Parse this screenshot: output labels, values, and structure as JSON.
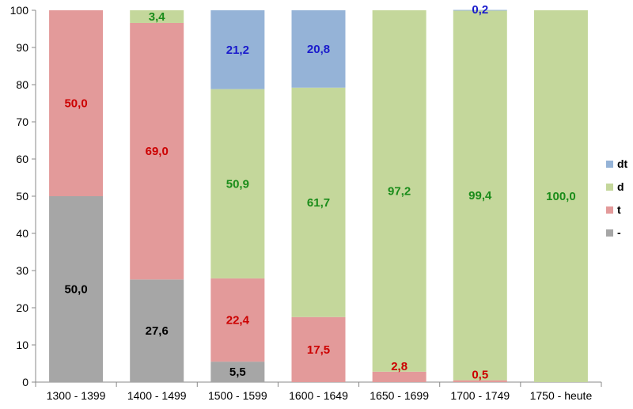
{
  "chart_data": {
    "type": "bar",
    "stacked": true,
    "categories": [
      "1300 - 1399",
      "1400 - 1499",
      "1500 - 1599",
      "1600 - 1649",
      "1650 - 1699",
      "1700 - 1749",
      "1750 - heute"
    ],
    "series": [
      {
        "name": "-",
        "color": "#a6a6a6",
        "label_color": "#000000",
        "values": [
          50.0,
          27.6,
          5.5,
          0,
          0,
          0,
          0
        ],
        "labels": [
          "50,0",
          "27,6",
          "5,5",
          "",
          "",
          "",
          ""
        ]
      },
      {
        "name": "t",
        "color": "#e39a9a",
        "label_color": "#cc0000",
        "values": [
          50.0,
          69.0,
          22.4,
          17.5,
          2.8,
          0.5,
          0
        ],
        "labels": [
          "50,0",
          "69,0",
          "22,4",
          "17,5",
          "2,8",
          "0,5",
          ""
        ]
      },
      {
        "name": "d",
        "color": "#c4d79b",
        "label_color": "#1a8c1a",
        "values": [
          0,
          3.4,
          50.9,
          61.7,
          97.2,
          99.4,
          100.0
        ],
        "labels": [
          "",
          "3,4",
          "50,9",
          "61,7",
          "97,2",
          "99,4",
          "100,0"
        ]
      },
      {
        "name": "dt",
        "color": "#95b3d7",
        "label_color": "#1a1acc",
        "values": [
          0,
          0,
          21.2,
          20.8,
          0,
          0.2,
          0
        ],
        "labels": [
          "",
          "",
          "21,2",
          "20,8",
          "",
          "0,2",
          ""
        ]
      }
    ],
    "y_ticks": [
      "0",
      "10",
      "20",
      "30",
      "40",
      "50",
      "60",
      "70",
      "80",
      "90",
      "100"
    ],
    "ylim": [
      0,
      100
    ],
    "grid": false,
    "legend_position": "right",
    "legend_order": [
      "dt",
      "d",
      "t",
      "-"
    ]
  }
}
